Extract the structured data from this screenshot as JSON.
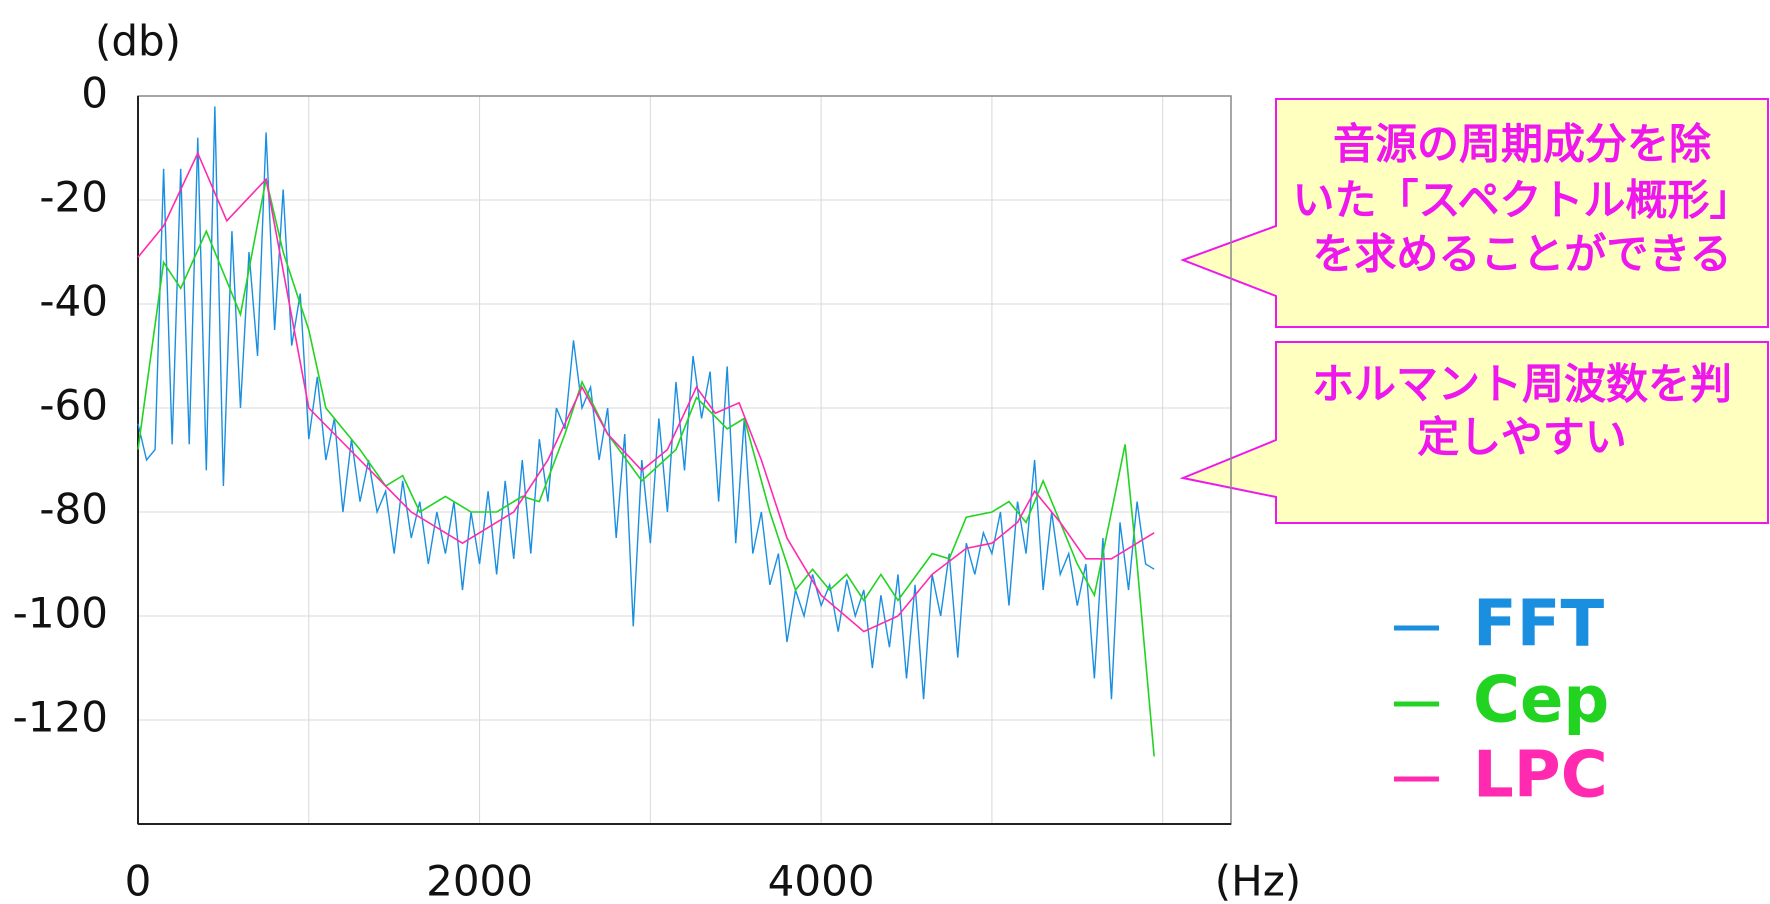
{
  "chart_data": {
    "type": "line",
    "y_label": "(db)",
    "x_label": "(Hz)",
    "xlim": [
      0,
      6400
    ],
    "ylim": [
      -140,
      0
    ],
    "xticks": [
      0,
      2000,
      4000
    ],
    "xgrid": [
      0,
      1000,
      2000,
      3000,
      4000,
      5000,
      6000
    ],
    "yticks": [
      0,
      -20,
      -40,
      -60,
      -80,
      -100,
      -120
    ],
    "grid": true,
    "series": [
      {
        "name": "FFT",
        "color": "#1a8fe0",
        "x": [
          0,
          50,
          100,
          150,
          200,
          250,
          300,
          350,
          400,
          450,
          500,
          550,
          600,
          650,
          700,
          750,
          800,
          850,
          900,
          950,
          1000,
          1050,
          1100,
          1150,
          1200,
          1250,
          1300,
          1350,
          1400,
          1450,
          1500,
          1550,
          1600,
          1650,
          1700,
          1750,
          1800,
          1850,
          1900,
          1950,
          2000,
          2050,
          2100,
          2150,
          2200,
          2250,
          2300,
          2350,
          2400,
          2450,
          2500,
          2550,
          2600,
          2650,
          2700,
          2750,
          2800,
          2850,
          2900,
          2950,
          3000,
          3050,
          3100,
          3150,
          3200,
          3250,
          3300,
          3350,
          3400,
          3450,
          3500,
          3550,
          3600,
          3650,
          3700,
          3750,
          3800,
          3850,
          3900,
          3950,
          4000,
          4050,
          4100,
          4150,
          4200,
          4250,
          4300,
          4350,
          4400,
          4450,
          4500,
          4550,
          4600,
          4650,
          4700,
          4750,
          4800,
          4850,
          4900,
          4950,
          5000,
          5050,
          5100,
          5150,
          5200,
          5250,
          5300,
          5350,
          5400,
          5450,
          5500,
          5550,
          5600,
          5650,
          5700,
          5750,
          5800,
          5850,
          5900,
          5950
        ],
        "values": [
          -63,
          -70,
          -68,
          -14,
          -67,
          -14,
          -67,
          -8,
          -72,
          -2,
          -75,
          -26,
          -60,
          -30,
          -50,
          -7,
          -45,
          -18,
          -48,
          -38,
          -66,
          -54,
          -70,
          -62,
          -80,
          -66,
          -78,
          -70,
          -80,
          -76,
          -88,
          -74,
          -85,
          -78,
          -90,
          -80,
          -88,
          -78,
          -95,
          -80,
          -90,
          -76,
          -92,
          -74,
          -89,
          -70,
          -88,
          -66,
          -78,
          -60,
          -64,
          -47,
          -60,
          -56,
          -70,
          -60,
          -85,
          -65,
          -102,
          -70,
          -86,
          -62,
          -80,
          -55,
          -72,
          -50,
          -62,
          -53,
          -78,
          -52,
          -86,
          -62,
          -88,
          -80,
          -94,
          -88,
          -105,
          -95,
          -100,
          -92,
          -98,
          -94,
          -103,
          -93,
          -100,
          -95,
          -110,
          -96,
          -106,
          -92,
          -112,
          -94,
          -116,
          -92,
          -100,
          -88,
          -108,
          -86,
          -92,
          -84,
          -88,
          -80,
          -98,
          -78,
          -88,
          -70,
          -95,
          -80,
          -92,
          -88,
          -98,
          -90,
          -112,
          -85,
          -116,
          -82,
          -95,
          -78,
          -90,
          -91
        ]
      },
      {
        "name": "Cep",
        "color": "#22d322",
        "x": [
          0,
          150,
          250,
          400,
          600,
          750,
          850,
          1000,
          1100,
          1300,
          1450,
          1550,
          1650,
          1800,
          1950,
          2100,
          2250,
          2350,
          2500,
          2600,
          2750,
          2950,
          3150,
          3270,
          3450,
          3550,
          3700,
          3850,
          3950,
          4050,
          4150,
          4250,
          4350,
          4450,
          4650,
          4750,
          4850,
          5000,
          5100,
          5200,
          5300,
          5500,
          5600,
          5700,
          5780,
          5850,
          5950
        ],
        "values": [
          -68,
          -32,
          -37,
          -26,
          -42,
          -16,
          -30,
          -45,
          -60,
          -68,
          -75,
          -73,
          -80,
          -77,
          -80,
          -80,
          -77,
          -78,
          -65,
          -55,
          -65,
          -74,
          -68,
          -58,
          -64,
          -62,
          -80,
          -95,
          -91,
          -95,
          -92,
          -97,
          -92,
          -97,
          -88,
          -89,
          -81,
          -80,
          -78,
          -82,
          -74,
          -90,
          -96,
          -80,
          -67,
          -90,
          -127
        ]
      },
      {
        "name": "LPC",
        "color": "#ff2ab0",
        "x": [
          0,
          150,
          350,
          520,
          750,
          1000,
          1300,
          1600,
          1900,
          2200,
          2400,
          2600,
          2750,
          2950,
          3100,
          3270,
          3380,
          3520,
          3650,
          3800,
          4000,
          4250,
          4450,
          4650,
          4850,
          5000,
          5150,
          5250,
          5400,
          5550,
          5700,
          5950
        ],
        "values": [
          -31,
          -25,
          -11,
          -24,
          -16,
          -60,
          -70,
          -80,
          -86,
          -80,
          -70,
          -56,
          -65,
          -72,
          -68,
          -56,
          -61,
          -59,
          -70,
          -85,
          -96,
          -103,
          -100,
          -92,
          -87,
          -86,
          -82,
          -76,
          -82,
          -89,
          -89,
          -84
        ]
      }
    ],
    "annotations": [
      {
        "lines": [
          "音源の周期成分を除",
          "いた「スペクトル概形」",
          "を求めることができる"
        ]
      },
      {
        "lines": [
          "ホルマント周波数を判",
          "定しやすい"
        ]
      }
    ]
  }
}
